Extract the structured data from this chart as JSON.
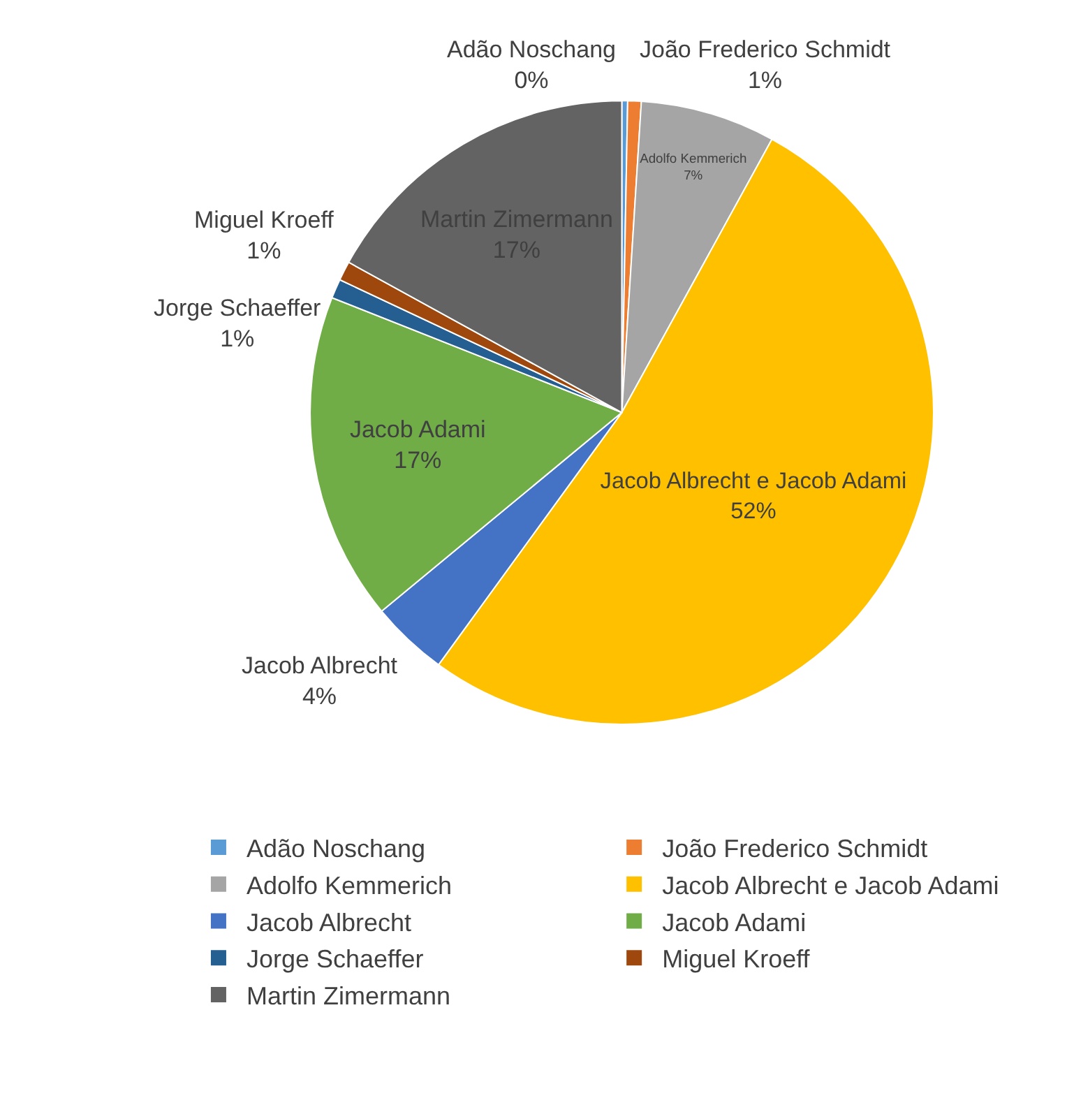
{
  "chart_data": {
    "type": "pie",
    "categories": [
      "Adão Noschang",
      "João Frederico Schmidt",
      "Adolfo Kemmerich",
      "Jacob Albrecht e Jacob Adami",
      "Jacob Albrecht",
      "Jacob Adami",
      "Jorge Schaeffer",
      "Miguel Kroeff",
      "Martin Zimermann"
    ],
    "values": [
      0.3,
      0.7,
      7,
      52,
      4,
      17,
      1,
      1,
      17
    ],
    "value_labels": [
      "0%",
      "1%",
      "7%",
      "52%",
      "4%",
      "17%",
      "1%",
      "1%",
      "17%"
    ],
    "colors": [
      "#5b9bd5",
      "#ed7d31",
      "#a5a5a5",
      "#ffc000",
      "#4472c4",
      "#70ad47",
      "#255e91",
      "#9e480e",
      "#636363"
    ],
    "legend": "bottom"
  }
}
